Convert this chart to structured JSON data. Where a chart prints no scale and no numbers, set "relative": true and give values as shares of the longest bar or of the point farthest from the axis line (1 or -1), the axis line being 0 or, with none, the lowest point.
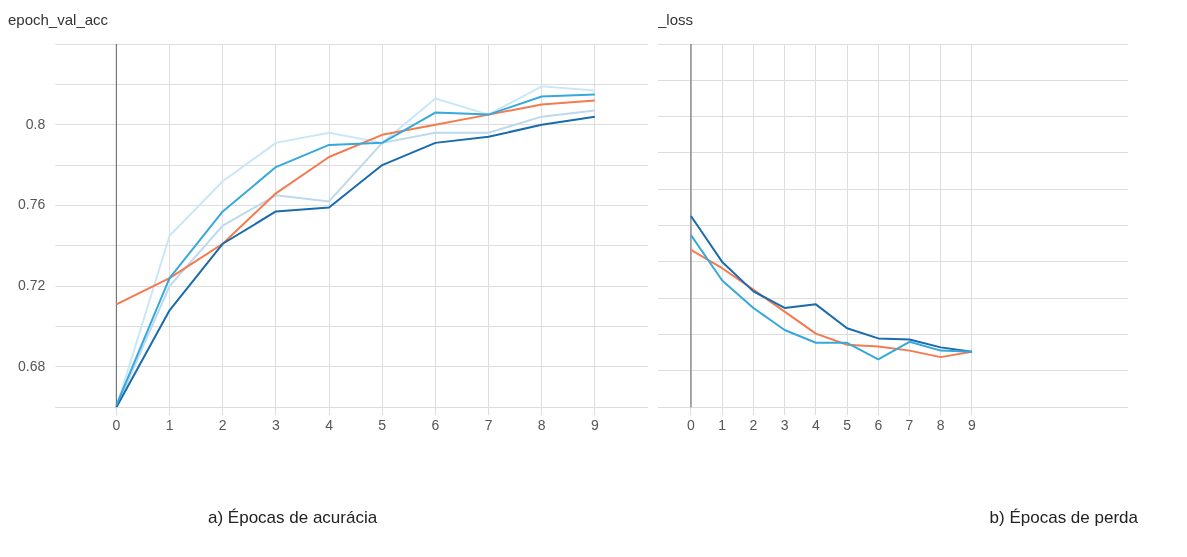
{
  "chart_data": [
    {
      "type": "line",
      "title": "epoch_val_acc",
      "annotations": [
        "a) Épocas de acurácia"
      ],
      "x": [
        0,
        1,
        2,
        3,
        4,
        5,
        6,
        7,
        8,
        9
      ],
      "xlim": [
        -1,
        10
      ],
      "xticks": [
        0,
        1,
        2,
        3,
        4,
        5,
        6,
        7,
        8,
        9
      ],
      "ylim": [
        0.66,
        0.84
      ],
      "yticks": [
        {
          "value": 0.66,
          "label": null
        },
        0.68,
        {
          "value": 0.7,
          "label": null
        },
        0.72,
        {
          "value": 0.74,
          "label": null
        },
        0.76,
        {
          "value": 0.78,
          "label": null
        },
        0.8,
        {
          "value": 0.82,
          "label": null
        },
        {
          "value": 0.84,
          "label": null
        }
      ],
      "grid": true,
      "legend": false,
      "series": [
        {
          "color": "#c9e7f6",
          "values": [
            0.66,
            0.745,
            0.772,
            0.791,
            0.796,
            0.791,
            0.813,
            0.805,
            0.819,
            0.817
          ]
        },
        {
          "color": "#bcd9ee",
          "values": [
            0.66,
            0.72,
            0.75,
            0.765,
            0.762,
            0.791,
            0.796,
            0.796,
            0.804,
            0.807
          ]
        },
        {
          "color": "#f47a50",
          "values": [
            0.711,
            0.724,
            0.741,
            0.766,
            0.784,
            0.795,
            0.8,
            0.805,
            0.81,
            0.812
          ]
        },
        {
          "color": "#1a6bab",
          "values": [
            0.66,
            0.708,
            0.741,
            0.757,
            0.759,
            0.78,
            0.791,
            0.794,
            0.8,
            0.804
          ]
        },
        {
          "color": "#36a9dc",
          "values": [
            0.661,
            0.724,
            0.757,
            0.779,
            0.79,
            0.791,
            0.806,
            0.805,
            0.814,
            0.815
          ]
        }
      ]
    },
    {
      "type": "line",
      "title": "_loss",
      "annotations": [
        "b) Épocas de perda"
      ],
      "relative": true,
      "x": [
        0,
        1,
        2,
        3,
        4,
        5,
        6,
        7,
        8,
        9
      ],
      "xlim": [
        -0.8,
        14
      ],
      "xticks": [
        0,
        1,
        2,
        3,
        4,
        5,
        6,
        7,
        8,
        9
      ],
      "grid": true,
      "legend": false,
      "series": [
        {
          "color": "#f47a50",
          "values": [
            0.823,
            0.727,
            0.615,
            0.5,
            0.385,
            0.327,
            0.317,
            0.296,
            0.262,
            0.29
          ]
        },
        {
          "color": "#1a6bab",
          "values": [
            1,
            0.76,
            0.606,
            0.519,
            0.538,
            0.413,
            0.36,
            0.354,
            0.313,
            0.29
          ]
        },
        {
          "color": "#36a9dc",
          "values": [
            0.9,
            0.663,
            0.519,
            0.404,
            0.337,
            0.337,
            0.25,
            0.342,
            0.296,
            0.29
          ]
        }
      ]
    }
  ]
}
